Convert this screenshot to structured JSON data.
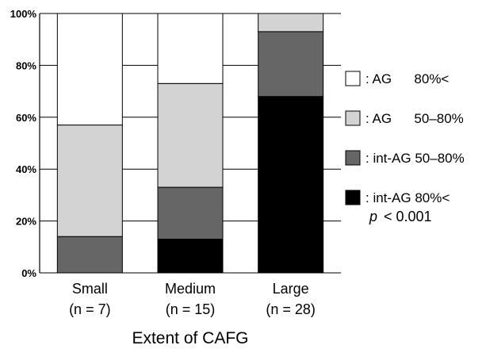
{
  "chart_data": {
    "type": "bar",
    "stacked": true,
    "percent": true,
    "categories": [
      "Small",
      "Medium",
      "Large"
    ],
    "category_sublabels": [
      "(n = 7)",
      "(n = 15)",
      "(n = 28)"
    ],
    "xlabel": "Extent of CAFG",
    "ylabel": "",
    "ylim": [
      0,
      100
    ],
    "yticks": [
      "0%",
      "20%",
      "40%",
      "60%",
      "80%",
      "100%"
    ],
    "grid": true,
    "legend_position": "right",
    "series": [
      {
        "name": ": int-AG 80%<",
        "color": "#000000",
        "values": [
          0,
          13,
          68
        ]
      },
      {
        "name": ": int-AG 50–80%",
        "color": "#666666",
        "values": [
          14,
          20,
          25
        ]
      },
      {
        "name": ": AG      50–80%",
        "color": "#d3d3d3",
        "values": [
          43,
          40,
          7
        ]
      },
      {
        "name": ": AG      80%<",
        "color": "#ffffff",
        "values": [
          43,
          27,
          0
        ]
      }
    ],
    "annotation": {
      "italic": "p",
      "text": "< 0.001"
    }
  }
}
